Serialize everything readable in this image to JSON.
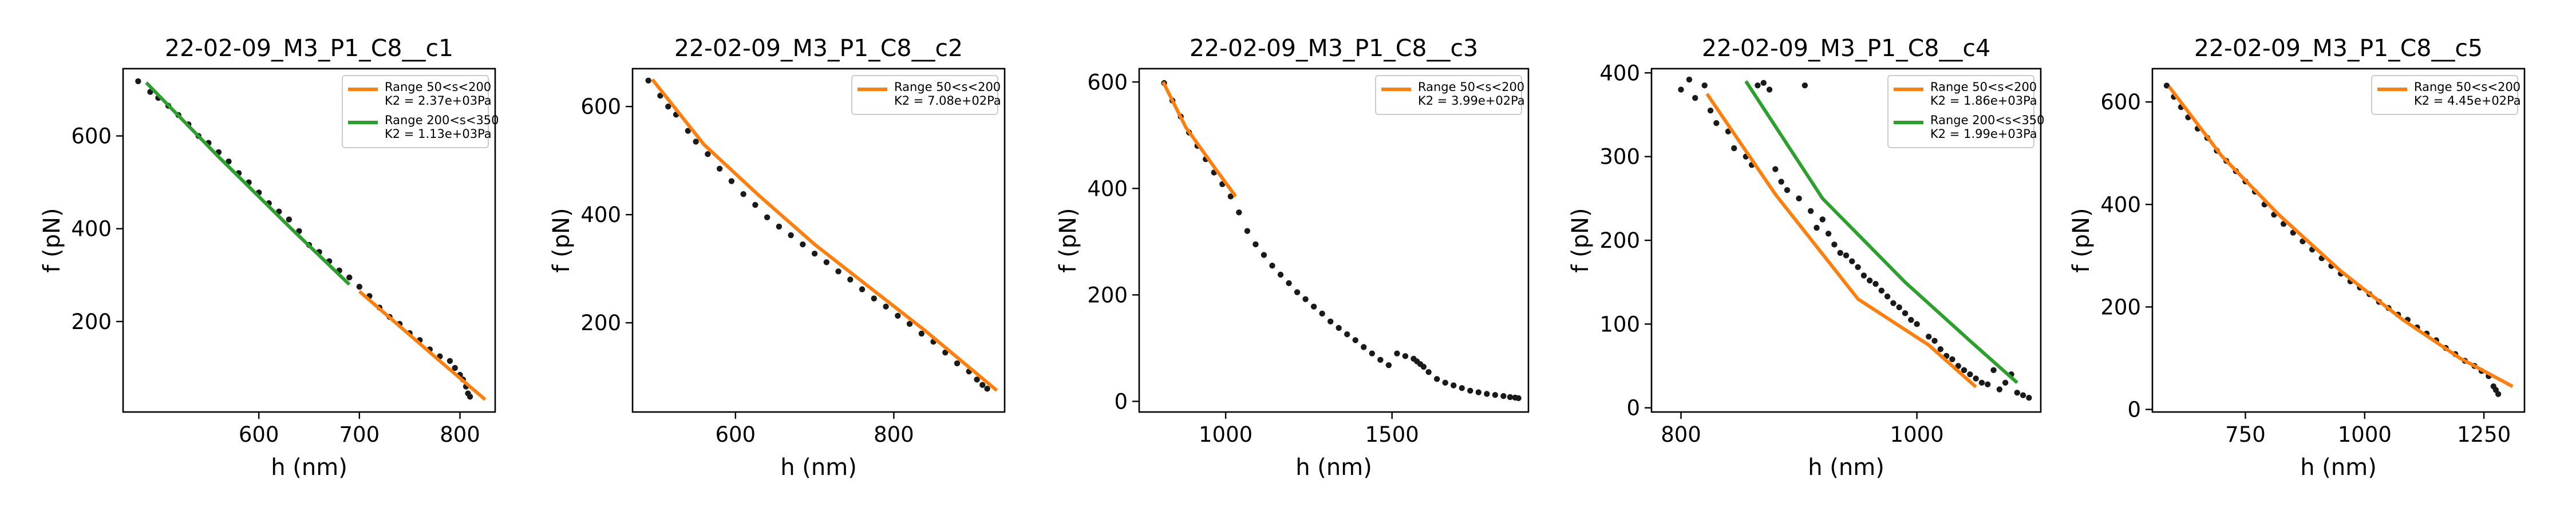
{
  "chart_data": [
    {
      "type": "scatter",
      "title": "22-02-09_M3_P1_C8__c1",
      "xlabel": "h (nm)",
      "ylabel": "f (pN)",
      "xlim": [
        465,
        835
      ],
      "ylim": [
        5,
        745
      ],
      "xticks": [
        600,
        700,
        800
      ],
      "yticks": [
        200,
        400,
        600
      ],
      "points": {
        "x": [
          480,
          492,
          500,
          510,
          520,
          530,
          540,
          550,
          560,
          570,
          580,
          590,
          600,
          610,
          620,
          630,
          640,
          650,
          660,
          670,
          680,
          690,
          700,
          710,
          720,
          730,
          740,
          750,
          760,
          770,
          780,
          790,
          795,
          800,
          803,
          806,
          808,
          810
        ],
        "y": [
          718,
          695,
          682,
          665,
          645,
          625,
          600,
          585,
          565,
          545,
          520,
          500,
          478,
          455,
          437,
          420,
          395,
          365,
          350,
          330,
          310,
          295,
          275,
          255,
          230,
          210,
          195,
          175,
          160,
          140,
          125,
          115,
          100,
          85,
          75,
          60,
          45,
          38
        ]
      },
      "fits": [
        {
          "name": "Range 50<s<200",
          "k2": "K2 = 2.37e+03Pa",
          "color": "#ff7f0e",
          "x": [
            700,
            740,
            780,
            825
          ],
          "y": [
            265,
            190,
            115,
            32
          ]
        },
        {
          "name": "Range 200<s<350",
          "k2": "K2 = 1.13e+03Pa",
          "color": "#2ca02c",
          "x": [
            488,
            560,
            630,
            690
          ],
          "y": [
            715,
            555,
            405,
            280
          ]
        }
      ],
      "legend": "upper right"
    },
    {
      "type": "scatter",
      "title": "22-02-09_M3_P1_C8__c2",
      "xlabel": "h (nm)",
      "ylabel": "f (pN)",
      "xlim": [
        470,
        940
      ],
      "ylim": [
        35,
        670
      ],
      "xticks": [
        600,
        800
      ],
      "yticks": [
        200,
        400,
        600
      ],
      "points": {
        "x": [
          490,
          505,
          515,
          525,
          540,
          550,
          565,
          580,
          595,
          610,
          625,
          640,
          655,
          670,
          685,
          700,
          715,
          730,
          745,
          760,
          775,
          790,
          805,
          820,
          835,
          850,
          865,
          880,
          895,
          905,
          912,
          918
        ],
        "y": [
          648,
          620,
          600,
          585,
          555,
          535,
          512,
          485,
          462,
          438,
          418,
          395,
          378,
          362,
          345,
          328,
          312,
          295,
          280,
          262,
          245,
          230,
          213,
          198,
          180,
          165,
          145,
          125,
          110,
          95,
          85,
          78
        ]
      },
      "fits": [
        {
          "name": "Range 50<s<200",
          "k2": "K2 = 7.08e+02Pa",
          "color": "#ff7f0e",
          "x": [
            495,
            560,
            630,
            700,
            770,
            840,
            930
          ],
          "y": [
            650,
            530,
            435,
            345,
            265,
            185,
            75
          ]
        }
      ],
      "legend": "upper right"
    },
    {
      "type": "scatter",
      "title": "22-02-09_M3_P1_C8__c3",
      "xlabel": "h (nm)",
      "ylabel": "f (pN)",
      "xlim": [
        740,
        1910
      ],
      "ylim": [
        -20,
        625
      ],
      "xticks": [
        1000,
        1500
      ],
      "yticks": [
        0,
        200,
        400,
        600
      ],
      "points": {
        "x": [
          815,
          840,
          865,
          890,
          915,
          940,
          965,
          990,
          1015,
          1040,
          1065,
          1090,
          1115,
          1140,
          1165,
          1190,
          1215,
          1240,
          1265,
          1290,
          1315,
          1340,
          1365,
          1390,
          1415,
          1440,
          1465,
          1490,
          1515,
          1540,
          1565,
          1575,
          1585,
          1595,
          1610,
          1635,
          1660,
          1685,
          1710,
          1735,
          1760,
          1785,
          1810,
          1835,
          1855,
          1870,
          1880
        ],
        "y": [
          598,
          565,
          535,
          505,
          480,
          455,
          430,
          408,
          385,
          355,
          320,
          295,
          275,
          255,
          238,
          222,
          205,
          192,
          178,
          165,
          150,
          138,
          126,
          115,
          102,
          90,
          78,
          68,
          90,
          85,
          80,
          75,
          70,
          65,
          55,
          42,
          35,
          30,
          25,
          20,
          17,
          14,
          12,
          10,
          8,
          7,
          6
        ]
      },
      "fits": [
        {
          "name": "Range 50<s<200",
          "k2": "K2 = 3.99e+02Pa",
          "color": "#ff7f0e",
          "x": [
            812,
            880,
            960,
            1030
          ],
          "y": [
            600,
            515,
            445,
            385
          ]
        }
      ],
      "legend": "upper right"
    },
    {
      "type": "scatter",
      "title": "22-02-09_M3_P1_C8__c4",
      "xlabel": "h (nm)",
      "ylabel": "f (pN)",
      "xlim": [
        775,
        1105
      ],
      "ylim": [
        -5,
        405
      ],
      "xticks": [
        800,
        1000
      ],
      "yticks": [
        0,
        100,
        200,
        300,
        400
      ],
      "points": {
        "x": [
          800,
          807,
          812,
          820,
          825,
          830,
          840,
          845,
          855,
          860,
          865,
          870,
          875,
          880,
          885,
          890,
          900,
          905,
          910,
          915,
          920,
          925,
          930,
          935,
          940,
          945,
          950,
          955,
          960,
          965,
          970,
          975,
          980,
          985,
          990,
          995,
          1000,
          1010,
          1015,
          1020,
          1025,
          1030,
          1035,
          1040,
          1045,
          1050,
          1055,
          1060,
          1065,
          1070,
          1075,
          1080,
          1085,
          1090,
          1095
        ],
        "y": [
          380,
          392,
          370,
          385,
          355,
          340,
          330,
          310,
          300,
          290,
          385,
          388,
          380,
          285,
          270,
          260,
          250,
          385,
          235,
          215,
          225,
          208,
          195,
          185,
          182,
          175,
          168,
          158,
          152,
          148,
          140,
          133,
          125,
          120,
          113,
          105,
          100,
          85,
          80,
          70,
          62,
          58,
          50,
          45,
          40,
          35,
          30,
          28,
          45,
          22,
          30,
          40,
          18,
          15,
          12
        ]
      },
      "fits": [
        {
          "name": "Range 50<s<200",
          "k2": "K2 = 1.86e+03Pa",
          "color": "#ff7f0e",
          "x": [
            822,
            880,
            950,
            1010,
            1050
          ],
          "y": [
            375,
            255,
            130,
            75,
            25
          ]
        },
        {
          "name": "Range 200<s<350",
          "k2": "K2 = 1.99e+03Pa",
          "color": "#2ca02c",
          "x": [
            855,
            920,
            990,
            1045,
            1085
          ],
          "y": [
            390,
            250,
            150,
            80,
            30
          ]
        }
      ],
      "legend": "upper right"
    },
    {
      "type": "scatter",
      "title": "22-02-09_M3_P1_C8__c5",
      "xlabel": "h (nm)",
      "ylabel": "f (pN)",
      "xlim": [
        555,
        1335
      ],
      "ylim": [
        -5,
        665
      ],
      "xticks": [
        750,
        1000,
        1250
      ],
      "yticks": [
        0,
        200,
        400,
        600
      ],
      "points": {
        "x": [
          585,
          600,
          615,
          630,
          650,
          670,
          690,
          710,
          730,
          750,
          770,
          790,
          810,
          830,
          850,
          870,
          890,
          910,
          930,
          950,
          970,
          990,
          1010,
          1030,
          1050,
          1070,
          1090,
          1110,
          1130,
          1150,
          1170,
          1190,
          1210,
          1230,
          1245,
          1260,
          1270,
          1275,
          1280
        ],
        "y": [
          632,
          610,
          590,
          570,
          548,
          530,
          505,
          485,
          465,
          445,
          425,
          400,
          380,
          362,
          345,
          328,
          312,
          295,
          280,
          265,
          250,
          238,
          225,
          210,
          198,
          185,
          175,
          160,
          148,
          135,
          120,
          108,
          95,
          85,
          75,
          65,
          45,
          38,
          30
        ]
      },
      "fits": [
        {
          "name": "Range 50<s<200",
          "k2": "K2 = 4.45e+02Pa",
          "color": "#ff7f0e",
          "x": [
            590,
            700,
            820,
            950,
            1080,
            1200,
            1310
          ],
          "y": [
            630,
            495,
            380,
            270,
            175,
            100,
            45
          ]
        }
      ],
      "legend": "upper right"
    }
  ]
}
